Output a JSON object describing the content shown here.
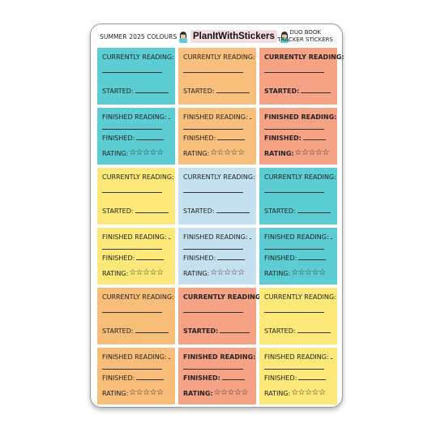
{
  "header": {
    "left": "SUMMER 2025 COLOURS",
    "brand": "PlanItWithStickers",
    "right_line1": "DUO BOOK",
    "right_line2": "TRACKER STICKERS"
  },
  "labels": {
    "currently_reading": "CURRENTLY READING:",
    "started": "STARTED:",
    "finished_reading": "FINISHED READING:",
    "finished": "FINISHED:",
    "rating": "RATING:",
    "stars": "☆☆☆☆☆"
  },
  "colors": {
    "teal": "#5ccdd3",
    "peach": "#f9bf7c",
    "salmon": "#f6a285",
    "yellow": "#fde979",
    "light_blue": "#c5e1f0",
    "orange": "#f8bd79",
    "avatar_hair": "#2b2b2b",
    "avatar_skin": "#f1c7a5",
    "avatar_shirt": "#5ccdd3"
  },
  "stickers": [
    {
      "type": "current",
      "color": "teal",
      "bold": false
    },
    {
      "type": "current",
      "color": "peach",
      "bold": false
    },
    {
      "type": "current",
      "color": "salmon",
      "bold": true
    },
    {
      "type": "finished",
      "color": "teal",
      "bold": false
    },
    {
      "type": "finished",
      "color": "peach",
      "bold": false
    },
    {
      "type": "finished",
      "color": "salmon",
      "bold": true
    },
    {
      "type": "current",
      "color": "yellow",
      "bold": false
    },
    {
      "type": "current",
      "color": "light_blue",
      "bold": false
    },
    {
      "type": "current",
      "color": "teal",
      "bold": false
    },
    {
      "type": "finished",
      "color": "yellow",
      "bold": false
    },
    {
      "type": "finished",
      "color": "light_blue",
      "bold": false
    },
    {
      "type": "finished",
      "color": "teal",
      "bold": false
    },
    {
      "type": "current",
      "color": "orange",
      "bold": false
    },
    {
      "type": "current",
      "color": "salmon",
      "bold": true
    },
    {
      "type": "current",
      "color": "yellow",
      "bold": false
    },
    {
      "type": "finished",
      "color": "orange",
      "bold": false
    },
    {
      "type": "finished",
      "color": "salmon",
      "bold": true
    },
    {
      "type": "finished",
      "color": "yellow",
      "bold": false
    }
  ]
}
